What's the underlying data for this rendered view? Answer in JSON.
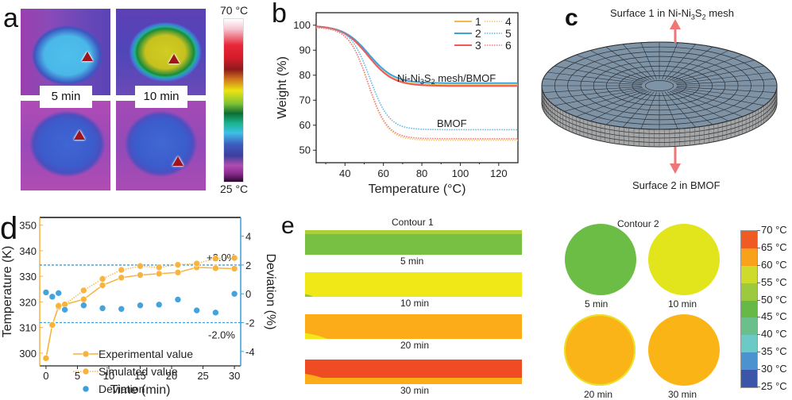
{
  "panels": {
    "a": {
      "label": "a",
      "images": [
        {
          "time": "5 min",
          "side": "top"
        },
        {
          "time": "10 min",
          "side": "top"
        },
        {
          "time": "5 min",
          "side": "bottom"
        },
        {
          "time": "10 min",
          "side": "bottom"
        }
      ],
      "time_labels": [
        "5 min",
        "10 min"
      ],
      "colorbar": {
        "max": "70 °C",
        "min": "25 °C"
      }
    },
    "b": {
      "label": "b"
    },
    "c": {
      "label": "c",
      "surface1_prefix": "Surface 1 in Ni-Ni",
      "surface1_sub1": "3",
      "surface1_mid": "S",
      "surface1_sub2": "2",
      "surface1_suffix": " mesh",
      "surface2": "Surface 2 in BMOF",
      "arrow_color": "#f07676",
      "disk_color": "#7f93a6"
    },
    "d": {
      "label": "d"
    },
    "e": {
      "label": "e",
      "contour1_title": "Contour 1",
      "contour2_title": "Contour 2",
      "bars": [
        {
          "time": "5 min",
          "main": "#78c043",
          "top": "#a9cf3a",
          "corner": null
        },
        {
          "time": "10 min",
          "main": "#f1e817",
          "top": null,
          "corner": "#9ac83a"
        },
        {
          "time": "20 min",
          "main": "#fbac18",
          "top": null,
          "corner": "#f1e817"
        },
        {
          "time": "30 min",
          "main": "#ef4c24",
          "top": null,
          "corner": "#fbac18"
        }
      ],
      "circles": [
        {
          "time": "5 min",
          "color": "#6bbd45",
          "rim": null
        },
        {
          "time": "10 min",
          "color": "#e2e41c",
          "rim": null
        },
        {
          "time": "20 min",
          "color": "#fbb417",
          "rim": "#ece12a"
        },
        {
          "time": "30 min",
          "color": "#fbb415",
          "rim": null
        }
      ],
      "colorbar": {
        "ticks": [
          "70 °C",
          "65 °C",
          "60 °C",
          "55 °C",
          "50 °C",
          "45 °C",
          "40 °C",
          "35 °C",
          "30 °C",
          "25 °C"
        ],
        "colors": [
          "#ef5b22",
          "#f9a11b",
          "#cfdb2a",
          "#9cc93e",
          "#66b947",
          "#6bbf88",
          "#6ccac6",
          "#4a93cf",
          "#3b56a8"
        ]
      }
    }
  },
  "chart_data": [
    {
      "panel": "b",
      "type": "line",
      "title": "",
      "xlabel": "Temperature (°C)",
      "ylabel": "Weight (%)",
      "xlim": [
        25,
        130
      ],
      "ylim": [
        45,
        105
      ],
      "xticks": [
        40,
        60,
        80,
        100,
        120
      ],
      "yticks": [
        50,
        60,
        70,
        80,
        90,
        100
      ],
      "legend": {
        "placement": "top-right",
        "entries": [
          "1",
          "2",
          "3",
          "4",
          "5",
          "6"
        ]
      },
      "annotations": [
        {
          "text_prefix": "Ni-Ni",
          "sub1": "3",
          "mid": "S",
          "sub2": "2",
          "text_suffix": " mesh/BMOF",
          "x": 92,
          "y": 79
        },
        {
          "text": "BMOF",
          "x": 92,
          "y": 61
        }
      ],
      "series": [
        {
          "name": "1",
          "color": "#f7b84a",
          "style": "solid",
          "start": 99.5,
          "plateau": 76.0,
          "midpoint": 52,
          "width": 6.5
        },
        {
          "name": "2",
          "color": "#3aa3d9",
          "style": "solid",
          "start": 99.5,
          "plateau": 76.8,
          "midpoint": 52.5,
          "width": 6.5
        },
        {
          "name": "3",
          "color": "#ee5a5a",
          "style": "solid",
          "start": 99.5,
          "plateau": 75.7,
          "midpoint": 52,
          "width": 6.5
        },
        {
          "name": "4",
          "color": "#f7c46a",
          "style": "dotted",
          "start": 99,
          "plateau": 54.0,
          "midpoint": 52,
          "width": 5
        },
        {
          "name": "5",
          "color": "#5ab7ea",
          "style": "dotted",
          "start": 99,
          "plateau": 58.2,
          "midpoint": 53,
          "width": 5
        },
        {
          "name": "6",
          "color": "#f07a7a",
          "style": "dotted",
          "start": 99,
          "plateau": 54.6,
          "midpoint": 52,
          "width": 5
        }
      ]
    },
    {
      "panel": "d",
      "type": "line",
      "title": "",
      "xlabel": "Time (min)",
      "ylabel_left": "Temperature (K)",
      "ylabel_right": "Deviation (%)",
      "xlim": [
        -1,
        31
      ],
      "ylim_left": [
        295,
        353
      ],
      "ylim_right": [
        -5,
        5.3
      ],
      "xticks": [
        0,
        5,
        10,
        15,
        20,
        25,
        30
      ],
      "yticks_left": [
        300,
        310,
        320,
        330,
        340,
        350
      ],
      "yticks_right": [
        -4,
        -2,
        0,
        2,
        4
      ],
      "legend": {
        "placement": "bottom-center",
        "entries": [
          "Experimental value",
          "Simulated  value",
          "Deviation"
        ]
      },
      "reference_lines": [
        {
          "deviation": 2.0,
          "label": "+2.0%"
        },
        {
          "deviation": -2.0,
          "label": "-2.0%"
        }
      ],
      "x": [
        0,
        1,
        2,
        3,
        6,
        9,
        12,
        15,
        18,
        21,
        24,
        27,
        30
      ],
      "series": [
        {
          "name": "Experimental value",
          "axis": "left",
          "color": "#f7b23b",
          "style": "solid",
          "values": [
            298,
            311,
            318,
            319,
            321,
            326.5,
            329.5,
            330.5,
            331,
            331.5,
            333.5,
            333.2,
            333
          ]
        },
        {
          "name": "Simulated  value",
          "axis": "left",
          "color": "#f7b23b",
          "style": "dotted",
          "values": [
            298,
            311,
            318.5,
            319,
            324.5,
            329,
            332.5,
            334,
            333.5,
            334.5,
            335,
            337,
            337.2
          ]
        },
        {
          "name": "Deviation",
          "axis": "right",
          "color": "#3a9fdc",
          "style": "markers",
          "values": [
            0.1,
            -0.2,
            0.05,
            -1.1,
            -0.8,
            -1.0,
            -1.05,
            -0.8,
            -0.75,
            -0.4,
            -1.15,
            -1.3,
            0.0
          ]
        }
      ],
      "axis_colors": {
        "left": "#f7b23b",
        "right": "#3a9fdc",
        "top": "#111111"
      }
    }
  ]
}
